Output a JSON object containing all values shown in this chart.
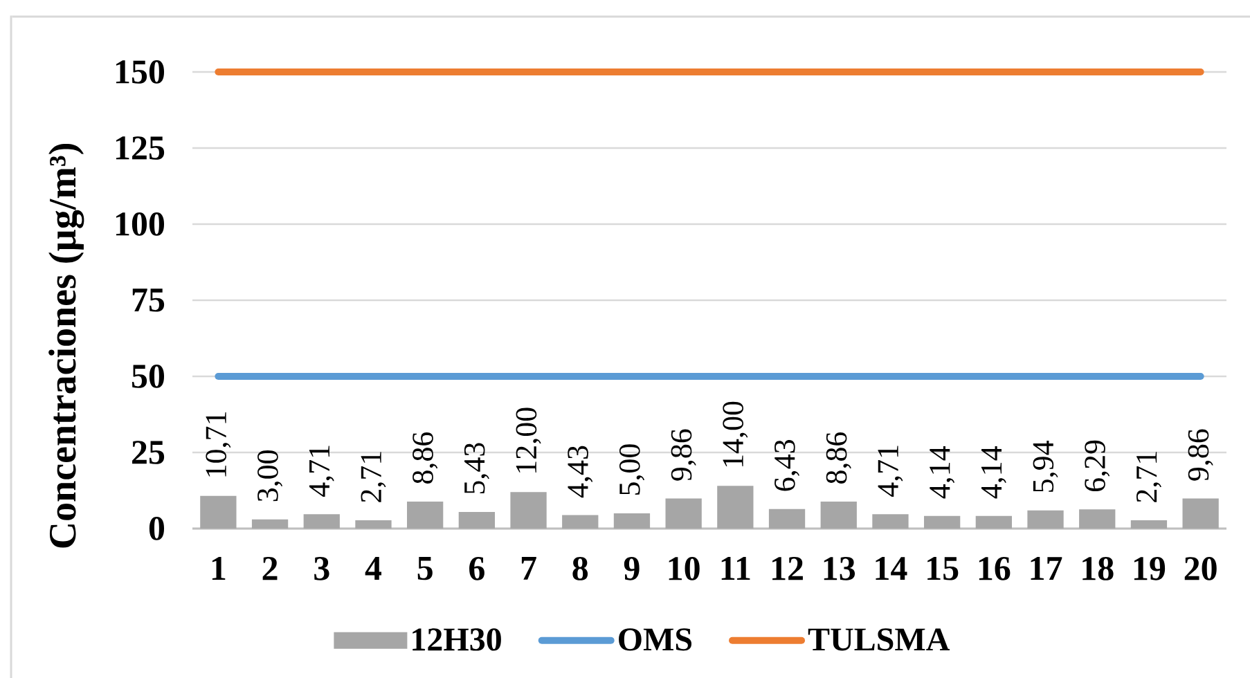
{
  "chart_data": {
    "type": "bar",
    "ylabel": "Concentraciones (µg/m³)",
    "categories": [
      "1",
      "2",
      "3",
      "4",
      "5",
      "6",
      "7",
      "8",
      "9",
      "10",
      "11",
      "12",
      "13",
      "14",
      "15",
      "16",
      "17",
      "18",
      "19",
      "20"
    ],
    "series": [
      {
        "name": "12H30",
        "color": "#a6a6a6",
        "values": [
          10.71,
          3.0,
          4.71,
          2.71,
          8.86,
          5.43,
          12.0,
          4.43,
          5.0,
          9.86,
          14.0,
          6.43,
          8.86,
          4.71,
          4.14,
          4.14,
          5.94,
          6.29,
          2.71,
          9.86
        ],
        "value_labels": [
          "10,71",
          "3,00",
          "4,71",
          "2,71",
          "8,86",
          "5,43",
          "12,00",
          "4,43",
          "5,00",
          "9,86",
          "14,00",
          "6,43",
          "8,86",
          "4,71",
          "4,14",
          "4,14",
          "5,94",
          "6,29",
          "2,71",
          "9,86"
        ]
      },
      {
        "name": "OMS",
        "type": "line",
        "color": "#5b9bd5",
        "values": [
          50,
          50,
          50,
          50,
          50,
          50,
          50,
          50,
          50,
          50,
          50,
          50,
          50,
          50,
          50,
          50,
          50,
          50,
          50,
          50
        ]
      },
      {
        "name": "TULSMA",
        "type": "line",
        "color": "#ed7d31",
        "values": [
          150,
          150,
          150,
          150,
          150,
          150,
          150,
          150,
          150,
          150,
          150,
          150,
          150,
          150,
          150,
          150,
          150,
          150,
          150,
          150
        ]
      }
    ],
    "ylim": [
      0,
      150
    ],
    "yticks": [
      0,
      25,
      50,
      75,
      100,
      125,
      150
    ],
    "grid": "y",
    "legend": "bottom",
    "marker": "none",
    "line_style": "solid"
  }
}
